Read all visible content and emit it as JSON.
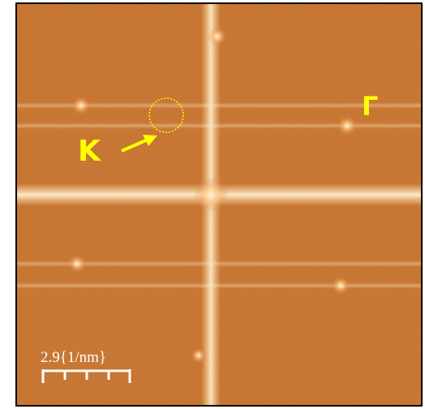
{
  "labels": {
    "k_point": "K",
    "gamma_point": "Γ",
    "scale_bar": "2.9{1/nm}"
  }
}
